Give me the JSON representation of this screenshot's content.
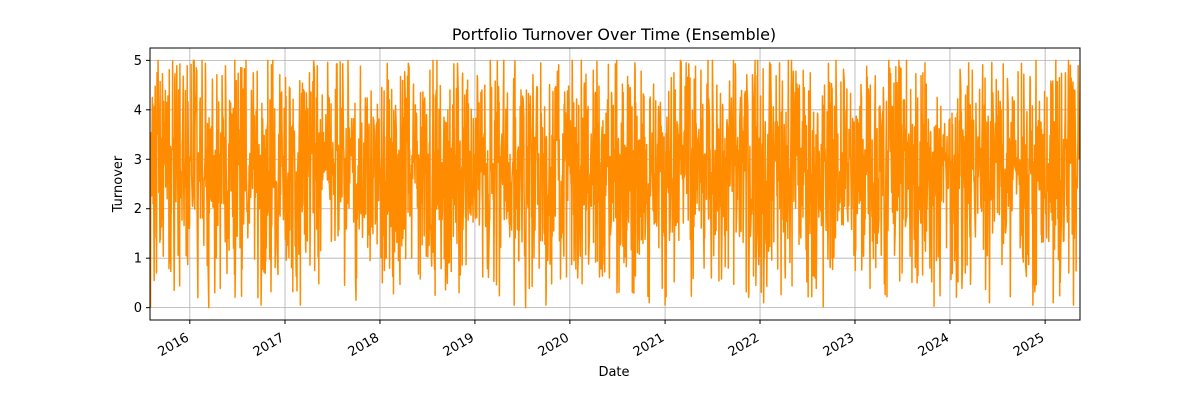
{
  "chart_data": {
    "type": "line",
    "title": "Portfolio Turnover Over Time (Ensemble)",
    "xlabel": "Date",
    "ylabel": "Turnover",
    "x_range": [
      "2015-08-01",
      "2025-05-15"
    ],
    "ylim": [
      -0.25,
      5.25
    ],
    "x_ticks": [
      "2016",
      "2017",
      "2018",
      "2019",
      "2020",
      "2021",
      "2022",
      "2023",
      "2024",
      "2025"
    ],
    "y_ticks": [
      0,
      1,
      2,
      3,
      4,
      5
    ],
    "grid": true,
    "legend": "none",
    "series": [
      {
        "color": "#ff8c00",
        "x_start": "2015-08-03",
        "x_end": "2025-05-12",
        "frequency": "business-daily",
        "points": [
          [
            "2015-08-03",
            0.0
          ],
          [
            "2015-08-10",
            4.25
          ],
          [
            "2015-08-17",
            0.55
          ],
          [
            "2015-09-01",
            5.0
          ],
          [
            "2015-10-01",
            3.0
          ],
          [
            "2015-11-01",
            1.2
          ],
          [
            "2016-01-15",
            5.0
          ],
          [
            "2016-02-01",
            0.2
          ],
          [
            "2016-06-01",
            3.0
          ],
          [
            "2016-10-01",
            0.05
          ],
          [
            "2016-11-15",
            5.0
          ],
          [
            "2017-03-01",
            0.05
          ],
          [
            "2017-06-01",
            2.8
          ],
          [
            "2017-10-01",
            0.15
          ],
          [
            "2018-01-01",
            2.5
          ],
          [
            "2018-06-01",
            3.0
          ],
          [
            "2018-11-01",
            0.3
          ],
          [
            "2019-03-01",
            5.0
          ],
          [
            "2019-06-01",
            0.05
          ],
          [
            "2019-07-15",
            0.0
          ],
          [
            "2019-10-01",
            0.05
          ],
          [
            "2020-03-01",
            4.5
          ],
          [
            "2020-06-01",
            0.6
          ],
          [
            "2020-11-01",
            0.1
          ],
          [
            "2021-01-01",
            0.05
          ],
          [
            "2021-03-01",
            5.0
          ],
          [
            "2021-09-01",
            0.8
          ],
          [
            "2022-01-15",
            0.1
          ],
          [
            "2022-06-01",
            4.5
          ],
          [
            "2022-09-01",
            0.02
          ],
          [
            "2023-01-01",
            2.5
          ],
          [
            "2023-03-01",
            4.5
          ],
          [
            "2023-07-01",
            0.7
          ],
          [
            "2023-11-01",
            0.03
          ],
          [
            "2024-03-01",
            4.3
          ],
          [
            "2024-06-01",
            0.1
          ],
          [
            "2024-09-01",
            3.0
          ],
          [
            "2024-11-15",
            0.05
          ],
          [
            "2025-02-01",
            0.1
          ],
          [
            "2025-04-01",
            5.0
          ],
          [
            "2025-04-20",
            0.05
          ],
          [
            "2025-05-12",
            3.0
          ]
        ]
      }
    ]
  }
}
